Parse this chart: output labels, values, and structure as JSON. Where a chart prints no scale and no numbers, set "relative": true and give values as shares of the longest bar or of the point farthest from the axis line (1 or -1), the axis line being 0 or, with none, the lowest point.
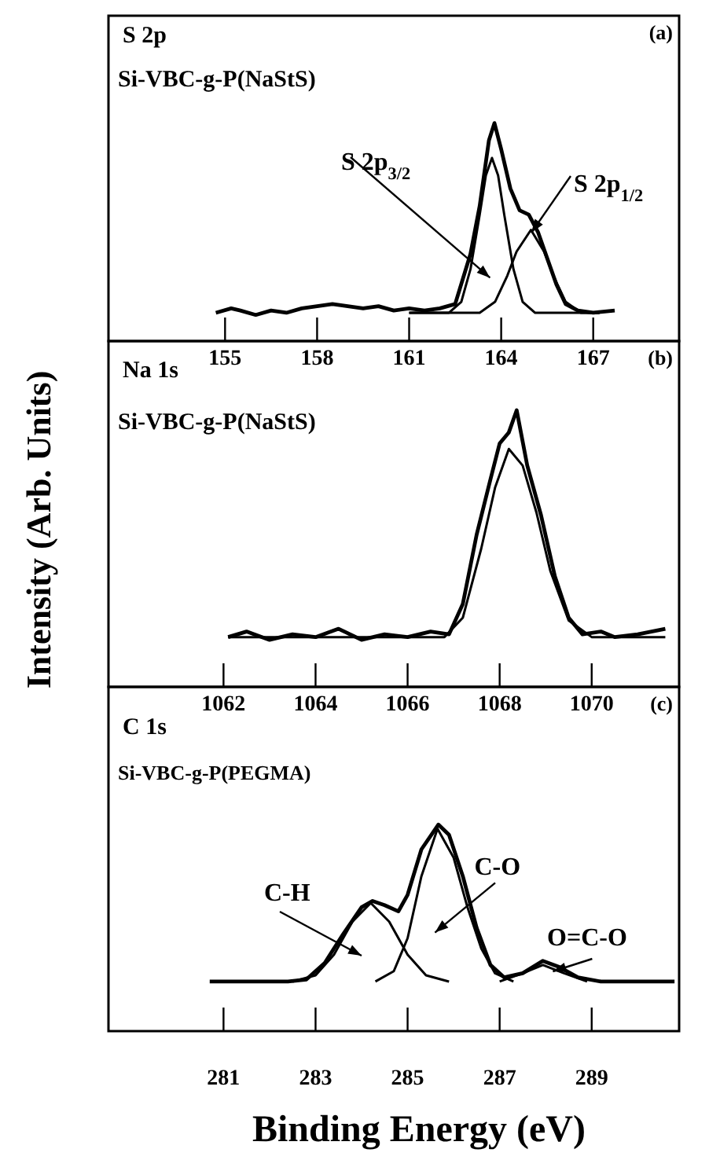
{
  "chart_data": [
    {
      "type": "line",
      "title": "S 2p",
      "subtitle": "Si-VBC-g-P(NaStS)",
      "relative": true,
      "xlim": [
        151.2,
        169.8
      ],
      "xticks": [
        155,
        158,
        161,
        164,
        167
      ],
      "annotations": [
        "(a)",
        "S 2p$_{3/2}$",
        "S 2p$_{1/2}$"
      ],
      "series": [
        {
          "color": "#000000",
          "x": [
            154.7,
            155.2,
            155.5,
            156.0,
            156.5,
            157.0,
            157.5,
            158.0,
            158.5,
            159.0,
            159.5,
            160.0,
            160.5,
            161.0,
            161.5,
            162.0,
            162.5,
            163.0,
            163.3,
            163.6,
            163.78,
            164.0,
            164.3,
            164.6,
            164.9,
            165.2,
            165.5,
            165.8,
            166.1,
            166.5,
            167.0,
            167.7
          ],
          "values": [
            0.13,
            0.15,
            0.14,
            0.12,
            0.14,
            0.13,
            0.15,
            0.16,
            0.17,
            0.16,
            0.15,
            0.16,
            0.14,
            0.15,
            0.14,
            0.15,
            0.17,
            0.4,
            0.62,
            0.92,
            1.0,
            0.88,
            0.7,
            0.6,
            0.58,
            0.5,
            0.38,
            0.26,
            0.17,
            0.14,
            0.13,
            0.14
          ]
        },
        {
          "color": "#000000",
          "x": [
            161.0,
            162.3,
            162.7,
            163.0,
            163.3,
            163.5,
            163.7,
            163.9,
            164.1,
            164.4,
            164.7,
            165.1,
            167.2
          ],
          "values": [
            0.13,
            0.13,
            0.18,
            0.33,
            0.58,
            0.76,
            0.84,
            0.76,
            0.58,
            0.33,
            0.18,
            0.13,
            0.13
          ]
        },
        {
          "color": "#000000",
          "x": [
            161.0,
            163.3,
            163.8,
            164.2,
            164.5,
            164.97,
            165.4,
            165.7,
            166.1,
            166.6,
            167.2
          ],
          "values": [
            0.13,
            0.13,
            0.18,
            0.3,
            0.41,
            0.51,
            0.41,
            0.3,
            0.18,
            0.13,
            0.13
          ]
        }
      ]
    },
    {
      "type": "line",
      "title": "Na 1s",
      "subtitle": "Si-VBC-g-P(NaStS)",
      "ylabel": "Intensity (Arb. Units)",
      "relative": true,
      "xlim": [
        1059.5,
        1071.9
      ],
      "xticks": [
        1062,
        1064,
        1066,
        1068,
        1070
      ],
      "annotations": [
        "(b)"
      ],
      "series": [
        {
          "color": "#000000",
          "x": [
            1062.1,
            1062.5,
            1063.0,
            1063.5,
            1064.0,
            1064.5,
            1065.0,
            1065.5,
            1066.0,
            1066.5,
            1066.9,
            1067.2,
            1067.5,
            1067.8,
            1068.0,
            1068.2,
            1068.37,
            1068.6,
            1068.9,
            1069.2,
            1069.5,
            1069.8,
            1070.2,
            1070.5,
            1071.0,
            1071.6
          ],
          "values": [
            0.18,
            0.2,
            0.17,
            0.19,
            0.18,
            0.21,
            0.17,
            0.19,
            0.18,
            0.2,
            0.19,
            0.3,
            0.55,
            0.75,
            0.88,
            0.92,
            1.0,
            0.8,
            0.62,
            0.4,
            0.25,
            0.19,
            0.2,
            0.18,
            0.19,
            0.21
          ]
        },
        {
          "color": "#000000",
          "x": [
            1062.1,
            1066.8,
            1067.2,
            1067.6,
            1067.9,
            1068.2,
            1068.5,
            1068.8,
            1069.1,
            1069.5,
            1070.0,
            1071.6
          ],
          "values": [
            0.18,
            0.18,
            0.25,
            0.5,
            0.72,
            0.86,
            0.8,
            0.63,
            0.42,
            0.24,
            0.18,
            0.18
          ]
        }
      ]
    },
    {
      "type": "line",
      "title": "C 1s",
      "subtitle": "Si-VBC-g-P(PEGMA)",
      "xlabel": "Binding Energy (eV)",
      "relative": true,
      "xlim": [
        278.5,
        290.9
      ],
      "xticks": [
        281,
        283,
        285,
        287,
        289
      ],
      "annotations": [
        "(c)",
        "C-H",
        "C-O",
        "O=C-O"
      ],
      "series": [
        {
          "color": "#000000",
          "x": [
            280.7,
            281.5,
            282.0,
            282.4,
            282.8,
            283.2,
            283.6,
            284.0,
            284.24,
            284.5,
            284.8,
            285.0,
            285.3,
            285.67,
            285.9,
            286.2,
            286.5,
            286.8,
            287.1,
            287.5,
            287.94,
            288.3,
            288.7,
            289.2,
            290.0,
            290.8
          ],
          "values": [
            0.24,
            0.24,
            0.24,
            0.24,
            0.25,
            0.33,
            0.47,
            0.6,
            0.63,
            0.61,
            0.58,
            0.66,
            0.88,
            1.0,
            0.95,
            0.75,
            0.5,
            0.32,
            0.26,
            0.28,
            0.34,
            0.31,
            0.26,
            0.24,
            0.24,
            0.24
          ]
        },
        {
          "color": "#000000",
          "x": [
            282.5,
            283.0,
            283.4,
            283.8,
            284.2,
            284.6,
            285.0,
            285.4,
            285.9
          ],
          "values": [
            0.24,
            0.27,
            0.37,
            0.53,
            0.62,
            0.53,
            0.37,
            0.27,
            0.24
          ]
        },
        {
          "color": "#000000",
          "x": [
            284.3,
            284.7,
            285.0,
            285.3,
            285.65,
            286.0,
            286.3,
            286.6,
            286.9,
            287.3
          ],
          "values": [
            0.24,
            0.29,
            0.45,
            0.75,
            0.98,
            0.84,
            0.6,
            0.4,
            0.28,
            0.24
          ]
        },
        {
          "color": "#000000",
          "x": [
            287.0,
            287.5,
            287.94,
            288.4,
            288.9
          ],
          "values": [
            0.24,
            0.28,
            0.32,
            0.28,
            0.24
          ]
        }
      ]
    }
  ]
}
